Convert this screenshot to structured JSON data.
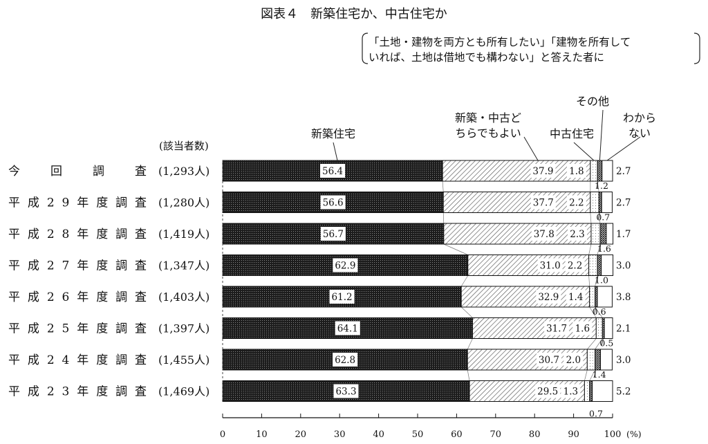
{
  "chart_data": {
    "type": "bar",
    "stacked": true,
    "orientation": "horizontal",
    "title": "図表４　新築住宅か、中古住宅か",
    "subtitle_lines": [
      "「土地・建物を両方とも所有したい」「建物を所有して",
      "いれば、土地は借地でも構わない」と答えた者に"
    ],
    "respondents_header": "(該当者数)",
    "x_unit": "(%)",
    "xlim": [
      0,
      100
    ],
    "x_ticks": [
      "0",
      "10",
      "20",
      "30",
      "40",
      "50",
      "60",
      "70",
      "80",
      "90",
      "100"
    ],
    "categories": [
      "今　　回　　調　　査",
      "平成29年度調査",
      "平成28年度調査",
      "平成27年度調査",
      "平成26年度調査",
      "平成25年度調査",
      "平成24年度調査",
      "平成23年度調査"
    ],
    "respondents": [
      "(1,293人)",
      "(1,280人)",
      "(1,419人)",
      "(1,347人)",
      "(1,403人)",
      "(1,397人)",
      "(1,455人)",
      "(1,469人)"
    ],
    "series": [
      {
        "name": "新築住宅",
        "values": [
          56.4,
          56.6,
          56.7,
          62.9,
          61.2,
          64.1,
          62.8,
          63.3
        ],
        "labels": [
          "56.4",
          "56.6",
          "56.7",
          "62.9",
          "61.2",
          "64.1",
          "62.8",
          "63.3"
        ]
      },
      {
        "name": "新築・中古どちらでもよい",
        "values": [
          37.9,
          37.7,
          37.8,
          31.0,
          32.9,
          31.7,
          30.7,
          29.5
        ],
        "labels": [
          "37.9",
          "37.7",
          "37.8",
          "31.0",
          "32.9",
          "31.7",
          "30.7",
          "29.5"
        ]
      },
      {
        "name": "中古住宅",
        "values": [
          1.8,
          2.2,
          2.3,
          2.2,
          1.4,
          1.6,
          2.0,
          1.3
        ],
        "labels": [
          "1.8",
          "2.2",
          "2.3",
          "2.2",
          "1.4",
          "1.6",
          "2.0",
          "1.3"
        ]
      },
      {
        "name": "その他",
        "values": [
          1.2,
          0.7,
          1.6,
          1.0,
          0.6,
          0.5,
          1.4,
          0.7
        ],
        "labels": [
          "1.2",
          "0.7",
          "1.6",
          "1.0",
          "0.6",
          "0.5",
          "1.4",
          "0.7"
        ]
      },
      {
        "name": "わからない",
        "values": [
          2.7,
          2.7,
          1.7,
          3.0,
          3.8,
          2.1,
          3.0,
          5.2
        ],
        "labels": [
          "2.7",
          "2.7",
          "1.7",
          "3.0",
          "3.8",
          "2.1",
          "3.0",
          "5.2"
        ]
      }
    ],
    "legend_labels": {
      "s0": "新築住宅",
      "s1": [
        "新築・中古ど",
        "ちらでもよい"
      ],
      "s2": "中古住宅",
      "s3": "その他",
      "s4": [
        "わから",
        "ない"
      ]
    },
    "grid": false,
    "legend": "top"
  }
}
